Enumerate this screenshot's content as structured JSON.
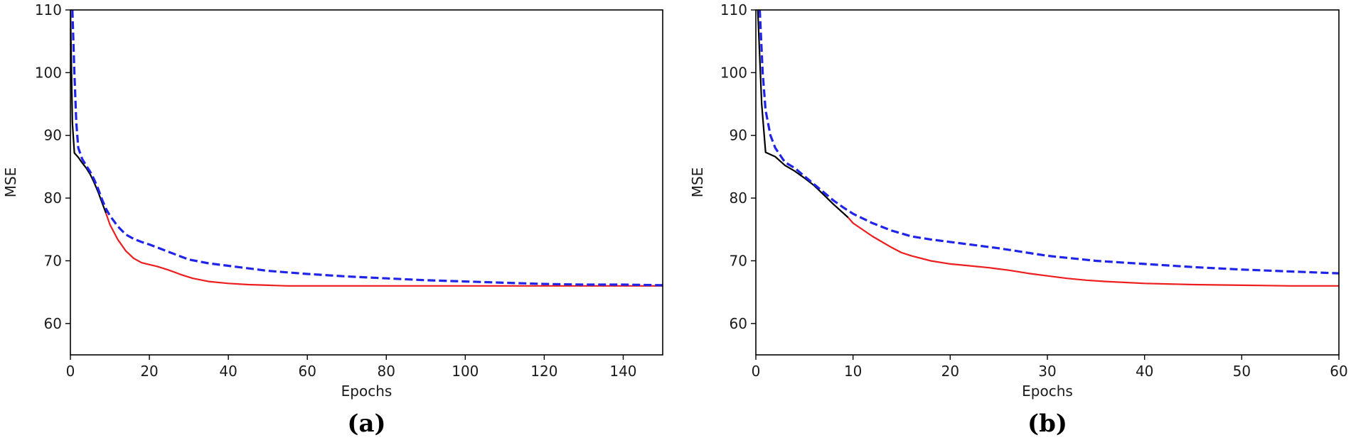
{
  "chart_data": [
    {
      "type": "line",
      "panel_label": "(a)",
      "xlabel": "Epochs",
      "ylabel": "MSE",
      "xlim": [
        0,
        150
      ],
      "ylim": [
        55,
        110
      ],
      "xticks": [
        0,
        20,
        40,
        60,
        80,
        100,
        120,
        140
      ],
      "yticks": [
        60,
        70,
        80,
        90,
        100,
        110
      ],
      "grid": false,
      "series": [
        {
          "color": "#000000",
          "style": "solid",
          "x": [
            0,
            0.5,
            1,
            2,
            3,
            4,
            5,
            6,
            7,
            8,
            9
          ],
          "y": [
            110,
            92,
            87.2,
            86.5,
            85.6,
            84.8,
            83.8,
            82.5,
            81,
            79.3,
            77.6
          ]
        },
        {
          "color": "#ee1c1c",
          "style": "solid",
          "x": [
            9,
            10,
            12,
            14,
            16,
            18,
            20,
            22,
            25,
            28,
            31,
            35,
            40,
            45,
            50,
            55,
            60,
            80,
            100,
            120,
            150
          ],
          "y": [
            77.6,
            75.8,
            73.4,
            71.6,
            70.4,
            69.7,
            69.4,
            69.1,
            68.5,
            67.8,
            67.2,
            66.7,
            66.4,
            66.2,
            66.1,
            66.0,
            66.0,
            66.0,
            66.0,
            66.0,
            66.0
          ]
        },
        {
          "color": "#1f24e8",
          "style": "dashed",
          "x": [
            0.5,
            1,
            1.5,
            2,
            3,
            4,
            5,
            6,
            7,
            8,
            9,
            10,
            12,
            14,
            16,
            18,
            20,
            25,
            30,
            35,
            40,
            50,
            60,
            70,
            80,
            90,
            100,
            110,
            120,
            130,
            140,
            150
          ],
          "y": [
            110,
            100,
            92,
            88,
            86.2,
            85.2,
            84.2,
            83,
            81.5,
            79.8,
            78.3,
            77.2,
            75.5,
            74.2,
            73.5,
            73.0,
            72.6,
            71.4,
            70.2,
            69.6,
            69.2,
            68.4,
            67.9,
            67.5,
            67.2,
            66.9,
            66.7,
            66.5,
            66.3,
            66.2,
            66.2,
            66.1
          ]
        }
      ]
    },
    {
      "type": "line",
      "panel_label": "(b)",
      "xlabel": "Epochs",
      "ylabel": "MSE",
      "xlim": [
        0,
        60
      ],
      "ylim": [
        55,
        110
      ],
      "xticks": [
        0,
        10,
        20,
        30,
        40,
        50,
        60
      ],
      "yticks": [
        60,
        70,
        80,
        90,
        100,
        110
      ],
      "grid": false,
      "series": [
        {
          "color": "#000000",
          "style": "solid",
          "x": [
            0.2,
            0.6,
            1,
            2,
            3,
            4,
            5,
            6,
            7,
            8,
            9,
            9.5
          ],
          "y": [
            110,
            95,
            87.3,
            86.6,
            85.2,
            84.3,
            83.2,
            82,
            80.5,
            79,
            77.6,
            76.9
          ]
        },
        {
          "color": "#ee1c1c",
          "style": "solid",
          "x": [
            9.5,
            10,
            12,
            14,
            15,
            16,
            18,
            20,
            22,
            24,
            26,
            28,
            30,
            32,
            34,
            36,
            40,
            45,
            50,
            55,
            60
          ],
          "y": [
            76.9,
            76.0,
            73.9,
            72.1,
            71.3,
            70.8,
            70.0,
            69.5,
            69.2,
            68.9,
            68.5,
            68.0,
            67.6,
            67.2,
            66.9,
            66.7,
            66.4,
            66.2,
            66.1,
            66.0,
            66.0
          ]
        },
        {
          "color": "#1f24e8",
          "style": "dashed",
          "x": [
            0.4,
            0.7,
            1,
            1.5,
            2,
            3,
            4,
            5,
            6,
            7,
            8,
            9,
            10,
            12,
            14,
            16,
            18,
            20,
            25,
            30,
            35,
            40,
            45,
            50,
            55,
            60
          ],
          "y": [
            110,
            100,
            94,
            90,
            88,
            85.7,
            84.8,
            83.5,
            82.2,
            80.9,
            79.6,
            78.5,
            77.5,
            76.0,
            74.8,
            73.9,
            73.4,
            73.0,
            72.0,
            70.8,
            70.0,
            69.5,
            69.0,
            68.6,
            68.3,
            68.0
          ]
        }
      ]
    }
  ]
}
